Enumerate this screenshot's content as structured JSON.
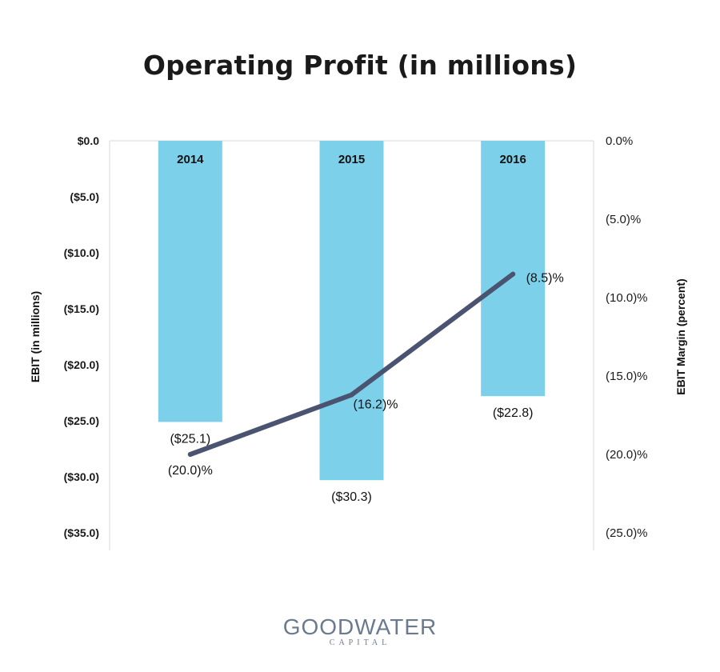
{
  "title": "Operating Profit (in millions)",
  "logo": {
    "name": "GOODWATER",
    "tagline": "CAPITAL"
  },
  "colors": {
    "bar": "#7dd0ea",
    "line": "#4a5470",
    "grid": "#d9d9d9"
  },
  "chart_data": {
    "type": "bar",
    "title": "Operating Profit (in millions)",
    "categories": [
      "2014",
      "2015",
      "2016"
    ],
    "series": [
      {
        "name": "EBIT",
        "type": "bar",
        "axis": "left",
        "values": [
          -25.1,
          -30.3,
          -22.8
        ],
        "labels": [
          "($25.1)",
          "($30.3)",
          "($22.8)"
        ]
      },
      {
        "name": "EBIT Margin",
        "type": "line",
        "axis": "right",
        "values": [
          -20.0,
          -16.2,
          -8.5
        ],
        "labels": [
          "(20.0)%",
          "(16.2)%",
          "(8.5)%"
        ]
      }
    ],
    "ylabel": "EBIT (in millions)",
    "ylabel_right": "EBIT Margin (percent)",
    "ylim": [
      -35,
      0
    ],
    "ylim_right": [
      -25,
      0
    ],
    "yticks": [
      "$0.0",
      "($5.0)",
      "($10.0)",
      "($15.0)",
      "($20.0)",
      "($25.0)",
      "($30.0)",
      "($35.0)"
    ],
    "yticks_right": [
      "0.0%",
      "(5.0)%",
      "(10.0)%",
      "(15.0)%",
      "(20.0)%",
      "(25.0)%"
    ],
    "grid": false,
    "legend": "none"
  }
}
